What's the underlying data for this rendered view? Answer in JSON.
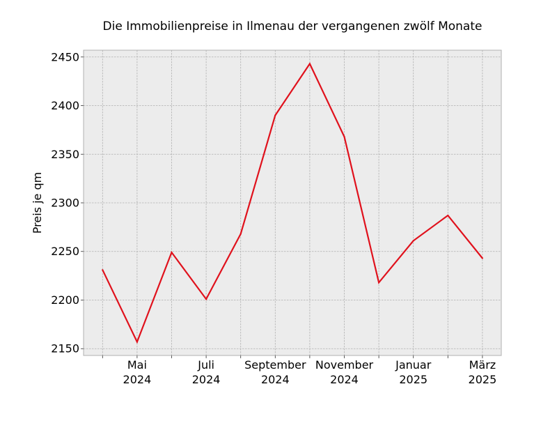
{
  "chart_data": {
    "type": "line",
    "title": "Die Immobilienpreise in Ilmenau der vergangenen zwölf Monate",
    "xlabel": "",
    "ylabel": "Preis je qm",
    "x": [
      "2024-04",
      "2024-05",
      "2024-06",
      "2024-07",
      "2024-08",
      "2024-09",
      "2024-10",
      "2024-11",
      "2024-12",
      "2025-01",
      "2025-02",
      "2025-03"
    ],
    "series": [
      {
        "values": [
          2231,
          2157,
          2249,
          2201,
          2268,
          2390,
          2443,
          2368,
          2218,
          2261,
          2287,
          2243
        ],
        "color": "#e0111c"
      }
    ],
    "x_tick_labels": [
      {
        "index": 1,
        "line1": "Mai",
        "line2": "2024"
      },
      {
        "index": 3,
        "line1": "Juli",
        "line2": "2024"
      },
      {
        "index": 5,
        "line1": "September",
        "line2": "2024"
      },
      {
        "index": 7,
        "line1": "November",
        "line2": "2024"
      },
      {
        "index": 9,
        "line1": "Januar",
        "line2": "2025"
      },
      {
        "index": 11,
        "line1": "März",
        "line2": "2025"
      }
    ],
    "y_ticks": [
      2150,
      2200,
      2250,
      2300,
      2350,
      2400,
      2450
    ],
    "ylim": [
      2143,
      2457
    ],
    "grid": true,
    "background": "#ececec"
  }
}
